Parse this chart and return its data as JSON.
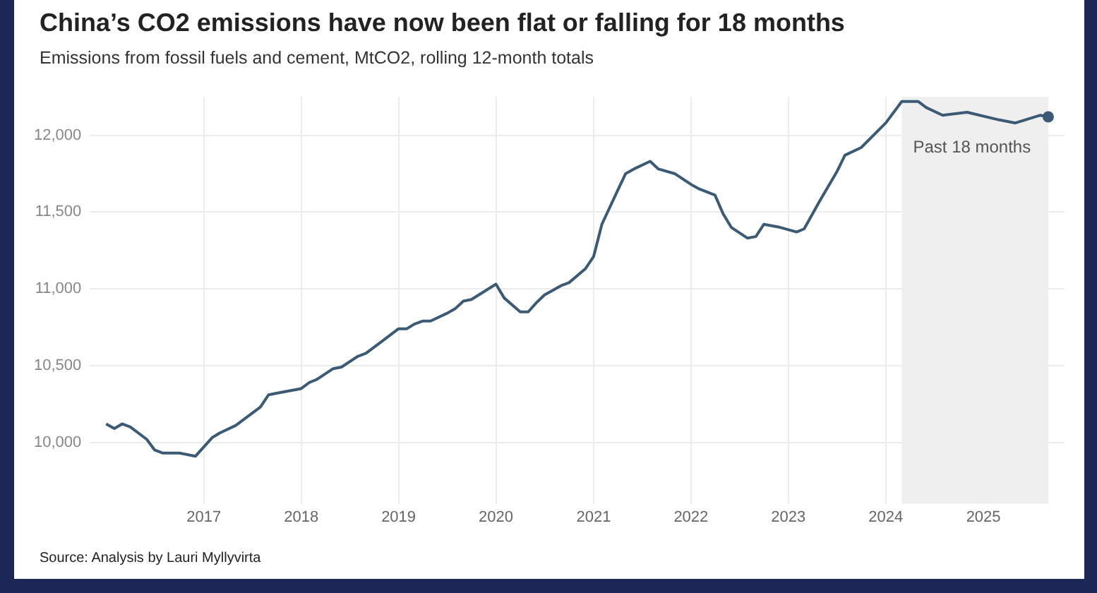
{
  "chart_data": {
    "type": "line",
    "title": "China’s CO2 emissions have now been flat or falling for 18 months",
    "subtitle": "Emissions from fossil fuels and cement, MtCO2, rolling 12-month totals",
    "annotations": [
      "Source: Analysis by Lauri Myllyvirta"
    ],
    "x": [
      "2016-01",
      "2016-02",
      "2016-03",
      "2016-04",
      "2016-06",
      "2016-07",
      "2016-08",
      "2016-10",
      "2016-12",
      "2017-01",
      "2017-02",
      "2017-03",
      "2017-05",
      "2017-08",
      "2017-09",
      "2017-10",
      "2018-01",
      "2018-02",
      "2018-03",
      "2018-05",
      "2018-06",
      "2018-08",
      "2018-09",
      "2018-11",
      "2019-01",
      "2019-02",
      "2019-03",
      "2019-04",
      "2019-05",
      "2019-07",
      "2019-08",
      "2019-09",
      "2019-10",
      "2020-01",
      "2020-02",
      "2020-04",
      "2020-05",
      "2020-06",
      "2020-07",
      "2020-09",
      "2020-10",
      "2020-12",
      "2021-01",
      "2021-02",
      "2021-04",
      "2021-05",
      "2021-06",
      "2021-08",
      "2021-09",
      "2021-11",
      "2022-01",
      "2022-02",
      "2022-04",
      "2022-05",
      "2022-06",
      "2022-08",
      "2022-09",
      "2022-10",
      "2022-12",
      "2023-02",
      "2023-03",
      "2023-05",
      "2023-07",
      "2023-08",
      "2023-10",
      "2024-01",
      "2024-03",
      "2024-05",
      "2024-06",
      "2024-08",
      "2024-11",
      "2025-03",
      "2025-05",
      "2025-08",
      "2025-09"
    ],
    "series": [
      {
        "color": "#3d5a75",
        "values": [
          10120,
          10090,
          10120,
          10100,
          10020,
          9950,
          9930,
          9930,
          9910,
          9970,
          10030,
          10060,
          10110,
          10230,
          10310,
          10320,
          10350,
          10390,
          10410,
          10480,
          10490,
          10560,
          10580,
          10660,
          10740,
          10740,
          10770,
          10790,
          10790,
          10840,
          10870,
          10920,
          10930,
          11030,
          10940,
          10850,
          10850,
          10910,
          10960,
          11020,
          11040,
          11130,
          11210,
          11420,
          11640,
          11750,
          11780,
          11830,
          11780,
          11750,
          11680,
          11650,
          11610,
          11490,
          11400,
          11330,
          11340,
          11420,
          11400,
          11370,
          11390,
          11580,
          11760,
          11870,
          11920,
          12080,
          12220,
          12220,
          12180,
          12130,
          12150,
          12100,
          12080,
          12130,
          12120
        ]
      }
    ],
    "xlim": [
      "2015-11",
      "2025-11"
    ],
    "xticks": [
      {
        "value": "2017",
        "label": "2017"
      },
      {
        "value": "2018",
        "label": "2018"
      },
      {
        "value": "2019",
        "label": "2019"
      },
      {
        "value": "2020",
        "label": "2020"
      },
      {
        "value": "2021",
        "label": "2021"
      },
      {
        "value": "2022",
        "label": "2022"
      },
      {
        "value": "2023",
        "label": "2023"
      },
      {
        "value": "2024",
        "label": "2024"
      },
      {
        "value": "2025",
        "label": "2025"
      }
    ],
    "ylim": [
      9600,
      12250
    ],
    "yticks": [
      {
        "value": 10000,
        "label": "10,000"
      },
      {
        "value": 10500,
        "label": "10,500"
      },
      {
        "value": 11000,
        "label": "11,000"
      },
      {
        "value": 11500,
        "label": "11,500"
      },
      {
        "value": 12000,
        "label": "12,000"
      }
    ],
    "bands": [
      {
        "axis": "x",
        "from": "2024-03",
        "to": "2025-09",
        "label": "Past 18 months",
        "color": "#efefef"
      }
    ],
    "grid": true,
    "legend": false,
    "marker": "none",
    "line_style": "solid"
  }
}
